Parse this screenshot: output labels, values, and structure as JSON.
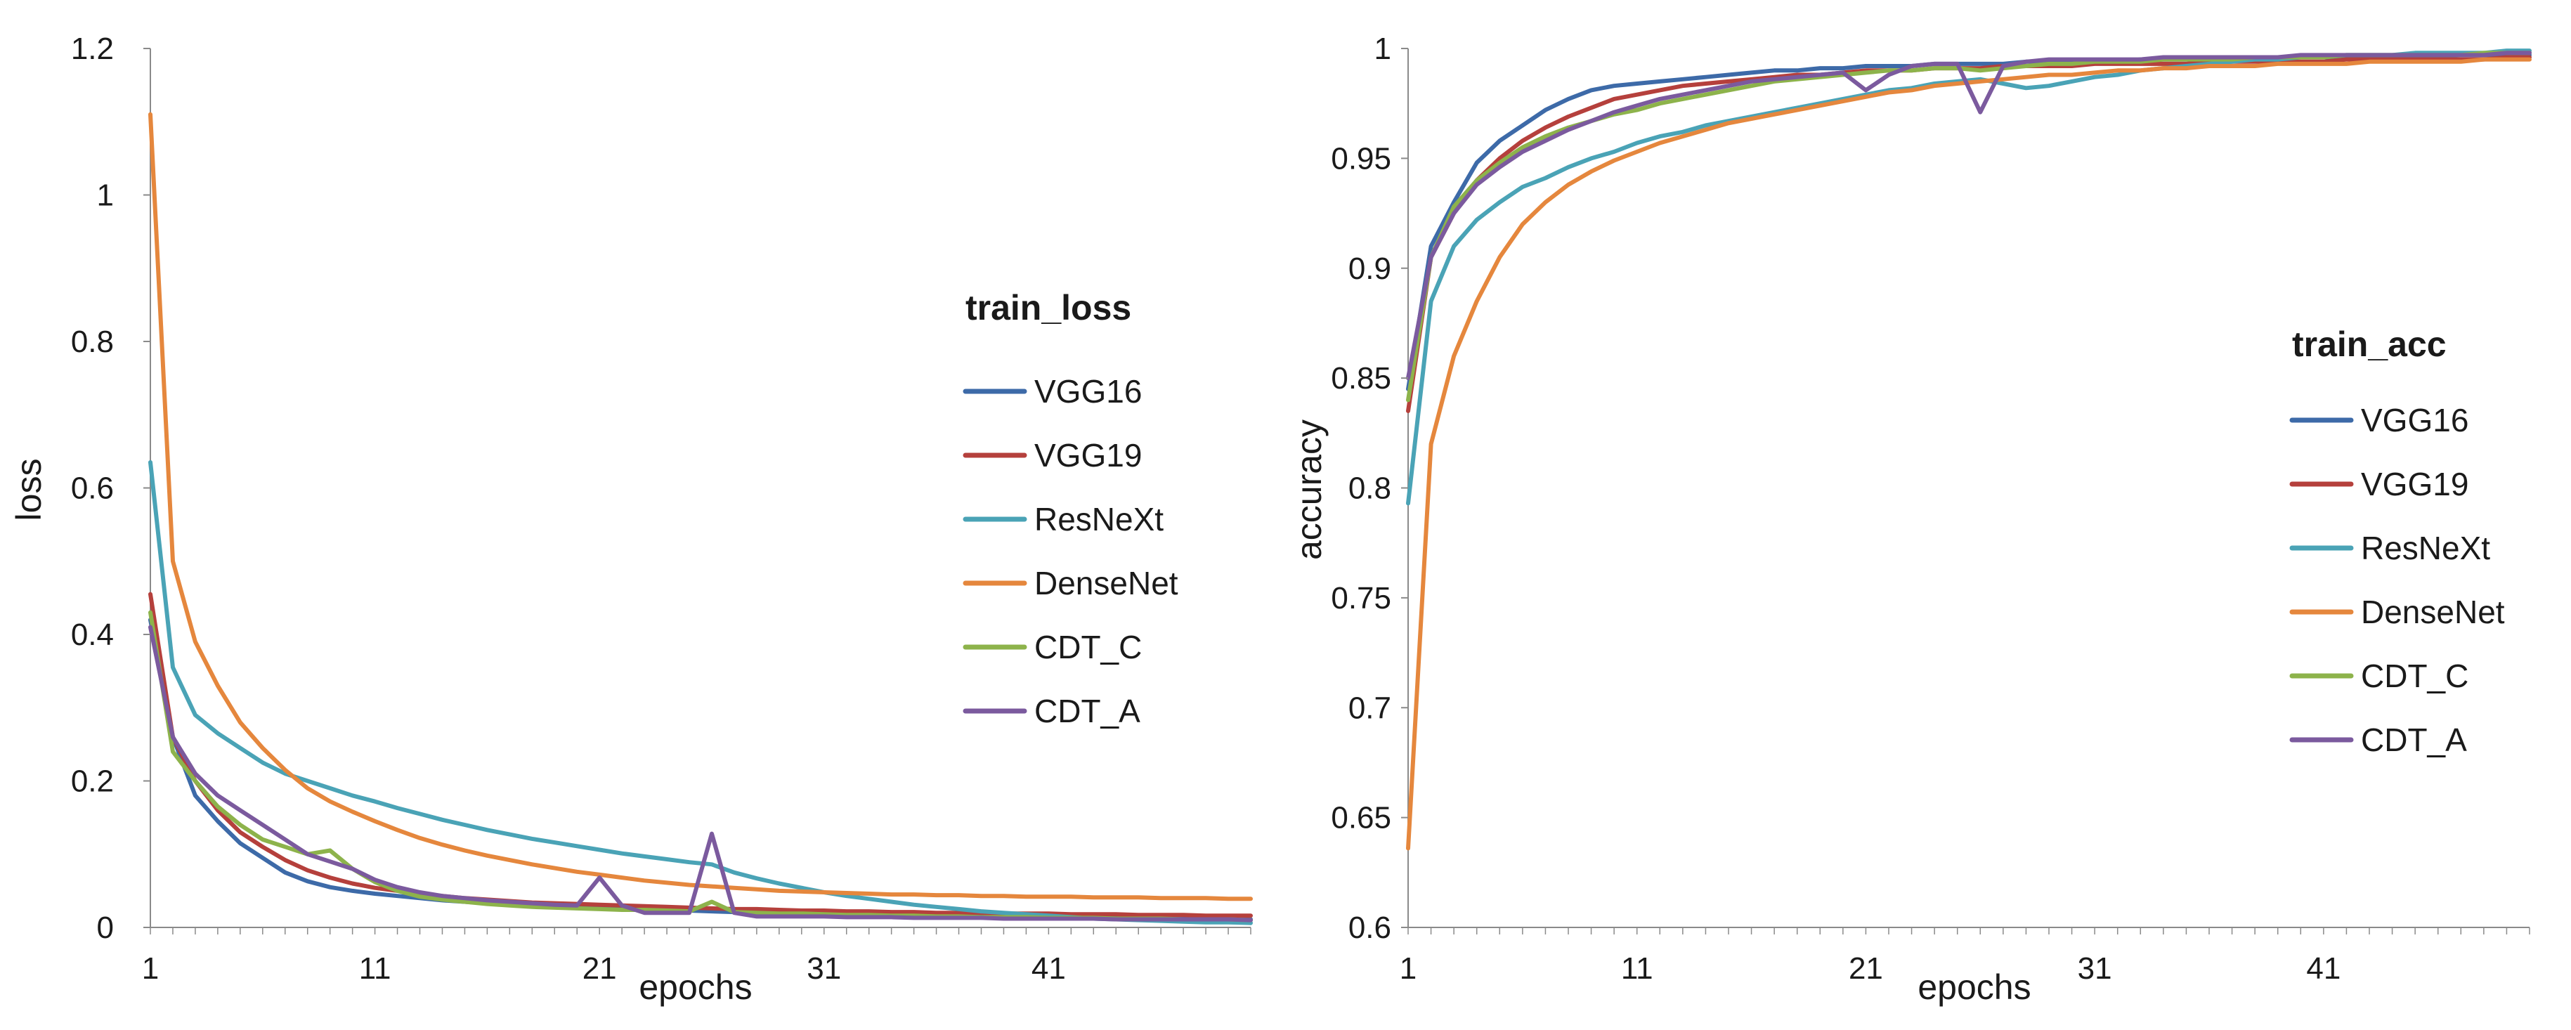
{
  "chart_data": [
    {
      "type": "line",
      "title": "train_loss",
      "xlabel": "epochs",
      "ylabel": "loss",
      "ylim": [
        0,
        1.2
      ],
      "xlim": [
        1,
        50
      ],
      "yticks": [
        0,
        0.2,
        0.4,
        0.6,
        0.8,
        1,
        1.2
      ],
      "ytick_labels": [
        "0",
        "0.2",
        "0.4",
        "0.6",
        "0.8",
        "1",
        "1.2"
      ],
      "xticks": [
        1,
        11,
        21,
        31,
        41
      ],
      "xtick_labels": [
        "1",
        "11",
        "21",
        "31",
        "41"
      ],
      "legend_position": "right",
      "series": [
        {
          "name": "VGG16",
          "color": "#3d6aa8",
          "values": [
            0.42,
            0.26,
            0.18,
            0.145,
            0.115,
            0.095,
            0.075,
            0.063,
            0.055,
            0.05,
            0.046,
            0.043,
            0.04,
            0.037,
            0.035,
            0.033,
            0.031,
            0.03,
            0.029,
            0.028,
            0.027,
            0.026,
            0.025,
            0.024,
            0.023,
            0.022,
            0.021,
            0.02,
            0.02,
            0.019,
            0.018,
            0.018,
            0.017,
            0.017,
            0.016,
            0.016,
            0.015,
            0.015,
            0.015,
            0.014,
            0.014,
            0.014,
            0.013,
            0.013,
            0.013,
            0.012,
            0.012,
            0.012,
            0.011,
            0.011
          ]
        },
        {
          "name": "VGG19",
          "color": "#b5403c",
          "values": [
            0.455,
            0.26,
            0.2,
            0.16,
            0.13,
            0.11,
            0.092,
            0.078,
            0.068,
            0.06,
            0.054,
            0.05,
            0.046,
            0.043,
            0.04,
            0.038,
            0.036,
            0.034,
            0.033,
            0.032,
            0.031,
            0.03,
            0.029,
            0.028,
            0.027,
            0.026,
            0.025,
            0.025,
            0.024,
            0.023,
            0.023,
            0.022,
            0.022,
            0.021,
            0.021,
            0.02,
            0.02,
            0.02,
            0.019,
            0.019,
            0.019,
            0.018,
            0.018,
            0.018,
            0.017,
            0.017,
            0.017,
            0.016,
            0.016,
            0.016
          ]
        },
        {
          "name": "ResNeXt",
          "color": "#4aa3b6",
          "values": [
            0.635,
            0.355,
            0.29,
            0.265,
            0.245,
            0.225,
            0.21,
            0.2,
            0.19,
            0.18,
            0.172,
            0.163,
            0.155,
            0.147,
            0.14,
            0.133,
            0.127,
            0.121,
            0.116,
            0.111,
            0.106,
            0.101,
            0.097,
            0.093,
            0.089,
            0.086,
            0.075,
            0.067,
            0.06,
            0.054,
            0.048,
            0.043,
            0.039,
            0.035,
            0.031,
            0.028,
            0.025,
            0.022,
            0.02,
            0.018,
            0.016,
            0.014,
            0.012,
            0.011,
            0.01,
            0.009,
            0.008,
            0.007,
            0.007,
            0.006
          ]
        },
        {
          "name": "DenseNet",
          "color": "#e5873d",
          "values": [
            1.11,
            0.5,
            0.39,
            0.33,
            0.28,
            0.245,
            0.215,
            0.19,
            0.172,
            0.158,
            0.145,
            0.133,
            0.122,
            0.113,
            0.105,
            0.098,
            0.092,
            0.086,
            0.081,
            0.076,
            0.072,
            0.068,
            0.064,
            0.061,
            0.058,
            0.056,
            0.054,
            0.052,
            0.05,
            0.049,
            0.048,
            0.047,
            0.046,
            0.045,
            0.045,
            0.044,
            0.044,
            0.043,
            0.043,
            0.042,
            0.042,
            0.042,
            0.041,
            0.041,
            0.041,
            0.04,
            0.04,
            0.04,
            0.039,
            0.039
          ]
        },
        {
          "name": "CDT_C",
          "color": "#8db34b",
          "values": [
            0.43,
            0.24,
            0.2,
            0.165,
            0.14,
            0.12,
            0.11,
            0.1,
            0.105,
            0.08,
            0.062,
            0.05,
            0.042,
            0.038,
            0.035,
            0.032,
            0.03,
            0.028,
            0.027,
            0.026,
            0.025,
            0.024,
            0.024,
            0.023,
            0.022,
            0.035,
            0.021,
            0.02,
            0.019,
            0.019,
            0.018,
            0.017,
            0.017,
            0.016,
            0.016,
            0.015,
            0.015,
            0.014,
            0.014,
            0.014,
            0.013,
            0.013,
            0.013,
            0.012,
            0.012,
            0.012,
            0.011,
            0.011,
            0.011,
            0.01
          ]
        },
        {
          "name": "CDT_A",
          "color": "#7b5a9e",
          "values": [
            0.41,
            0.26,
            0.21,
            0.18,
            0.16,
            0.14,
            0.12,
            0.1,
            0.09,
            0.08,
            0.065,
            0.055,
            0.048,
            0.043,
            0.04,
            0.037,
            0.035,
            0.033,
            0.031,
            0.03,
            0.068,
            0.03,
            0.02,
            0.02,
            0.02,
            0.128,
            0.02,
            0.015,
            0.015,
            0.015,
            0.015,
            0.014,
            0.014,
            0.014,
            0.013,
            0.013,
            0.013,
            0.013,
            0.012,
            0.012,
            0.012,
            0.012,
            0.012,
            0.011,
            0.011,
            0.011,
            0.011,
            0.011,
            0.011,
            0.01
          ]
        }
      ]
    },
    {
      "type": "line",
      "title": "train_acc",
      "xlabel": "epochs",
      "ylabel": "accuracy",
      "ylim": [
        0.6,
        1
      ],
      "xlim": [
        1,
        50
      ],
      "yticks": [
        0.6,
        0.65,
        0.7,
        0.75,
        0.8,
        0.85,
        0.9,
        0.95,
        1
      ],
      "ytick_labels": [
        "0.6",
        "0.65",
        "0.7",
        "0.75",
        "0.8",
        "0.85",
        "0.9",
        "0.95",
        "1"
      ],
      "xticks": [
        1,
        11,
        21,
        31,
        41
      ],
      "xtick_labels": [
        "1",
        "11",
        "21",
        "31",
        "41"
      ],
      "legend_position": "right",
      "series": [
        {
          "name": "VGG16",
          "color": "#3d6aa8",
          "values": [
            0.845,
            0.91,
            0.93,
            0.948,
            0.958,
            0.965,
            0.972,
            0.977,
            0.981,
            0.983,
            0.984,
            0.985,
            0.986,
            0.987,
            0.988,
            0.989,
            0.99,
            0.99,
            0.991,
            0.991,
            0.992,
            0.992,
            0.992,
            0.993,
            0.993,
            0.993,
            0.993,
            0.994,
            0.994,
            0.994,
            0.994,
            0.994,
            0.995,
            0.995,
            0.995,
            0.995,
            0.995,
            0.995,
            0.996,
            0.996,
            0.996,
            0.996,
            0.996,
            0.996,
            0.996,
            0.996,
            0.997,
            0.997,
            0.997,
            0.997
          ]
        },
        {
          "name": "VGG19",
          "color": "#b5403c",
          "values": [
            0.835,
            0.905,
            0.925,
            0.94,
            0.95,
            0.958,
            0.964,
            0.969,
            0.973,
            0.977,
            0.979,
            0.981,
            0.983,
            0.984,
            0.985,
            0.986,
            0.987,
            0.988,
            0.988,
            0.989,
            0.99,
            0.99,
            0.99,
            0.991,
            0.991,
            0.991,
            0.992,
            0.992,
            0.992,
            0.992,
            0.993,
            0.993,
            0.993,
            0.993,
            0.993,
            0.994,
            0.994,
            0.994,
            0.994,
            0.994,
            0.994,
            0.995,
            0.995,
            0.995,
            0.995,
            0.995,
            0.995,
            0.995,
            0.996,
            0.996
          ]
        },
        {
          "name": "ResNeXt",
          "color": "#4aa3b6",
          "values": [
            0.793,
            0.885,
            0.91,
            0.922,
            0.93,
            0.937,
            0.941,
            0.946,
            0.95,
            0.953,
            0.957,
            0.96,
            0.962,
            0.965,
            0.967,
            0.969,
            0.971,
            0.973,
            0.975,
            0.977,
            0.979,
            0.981,
            0.982,
            0.984,
            0.985,
            0.986,
            0.984,
            0.982,
            0.983,
            0.985,
            0.987,
            0.988,
            0.99,
            0.991,
            0.992,
            0.993,
            0.994,
            0.995,
            0.995,
            0.996,
            0.996,
            0.997,
            0.997,
            0.997,
            0.998,
            0.998,
            0.998,
            0.998,
            0.999,
            0.999
          ]
        },
        {
          "name": "DenseNet",
          "color": "#e5873d",
          "values": [
            0.636,
            0.82,
            0.86,
            0.885,
            0.905,
            0.92,
            0.93,
            0.938,
            0.944,
            0.949,
            0.953,
            0.957,
            0.96,
            0.963,
            0.966,
            0.968,
            0.97,
            0.972,
            0.974,
            0.976,
            0.978,
            0.98,
            0.981,
            0.983,
            0.984,
            0.985,
            0.986,
            0.987,
            0.988,
            0.988,
            0.989,
            0.99,
            0.99,
            0.991,
            0.991,
            0.992,
            0.992,
            0.992,
            0.993,
            0.993,
            0.993,
            0.993,
            0.994,
            0.994,
            0.994,
            0.994,
            0.994,
            0.995,
            0.995,
            0.995
          ]
        },
        {
          "name": "CDT_C",
          "color": "#8db34b",
          "values": [
            0.84,
            0.905,
            0.928,
            0.94,
            0.948,
            0.955,
            0.96,
            0.964,
            0.967,
            0.97,
            0.972,
            0.975,
            0.977,
            0.979,
            0.981,
            0.983,
            0.985,
            0.986,
            0.987,
            0.988,
            0.989,
            0.99,
            0.99,
            0.991,
            0.991,
            0.99,
            0.991,
            0.992,
            0.993,
            0.993,
            0.994,
            0.994,
            0.994,
            0.995,
            0.995,
            0.995,
            0.995,
            0.996,
            0.996,
            0.996,
            0.996,
            0.997,
            0.997,
            0.997,
            0.997,
            0.997,
            0.997,
            0.998,
            0.998,
            0.998
          ]
        },
        {
          "name": "CDT_A",
          "color": "#7b5a9e",
          "values": [
            0.85,
            0.905,
            0.925,
            0.938,
            0.946,
            0.953,
            0.958,
            0.963,
            0.967,
            0.971,
            0.974,
            0.977,
            0.979,
            0.981,
            0.983,
            0.985,
            0.986,
            0.987,
            0.988,
            0.989,
            0.981,
            0.988,
            0.992,
            0.993,
            0.993,
            0.971,
            0.992,
            0.994,
            0.995,
            0.995,
            0.995,
            0.995,
            0.995,
            0.996,
            0.996,
            0.996,
            0.996,
            0.996,
            0.996,
            0.997,
            0.997,
            0.997,
            0.997,
            0.997,
            0.997,
            0.997,
            0.997,
            0.997,
            0.998,
            0.998
          ]
        }
      ]
    }
  ]
}
